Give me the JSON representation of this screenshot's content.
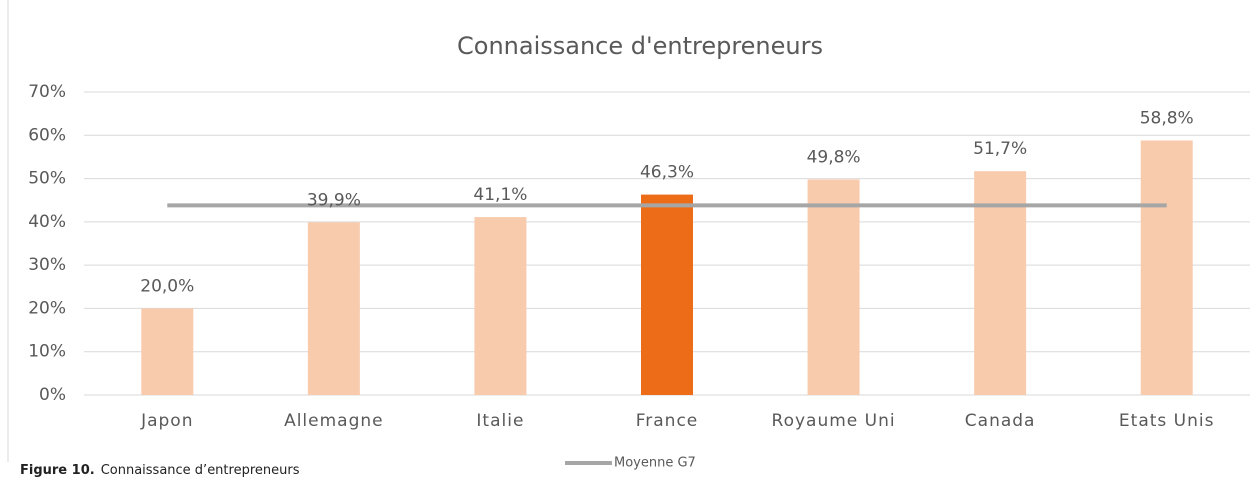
{
  "chart_data": {
    "type": "bar",
    "title": "Connaissance d'entrepreneurs",
    "categories": [
      "Japon",
      "Allemagne",
      "Italie",
      "France",
      "Royaume Uni",
      "Canada",
      "Etats Unis"
    ],
    "values": [
      20.0,
      39.9,
      41.1,
      46.3,
      49.8,
      51.7,
      58.8
    ],
    "value_labels": [
      "20,0%",
      "39,9%",
      "41,1%",
      "46,3%",
      "49,8%",
      "51,7%",
      "58,8%"
    ],
    "colors": [
      "#f8cbad",
      "#f8cbad",
      "#f8cbad",
      "#ec6c17",
      "#f8cbad",
      "#f8cbad",
      "#f8cbad"
    ],
    "lines": [
      {
        "name": "Moyenne G7",
        "color": "#a6a6a6",
        "values": [
          43.8,
          43.8,
          43.8,
          43.8,
          43.8,
          43.8,
          43.8
        ]
      }
    ],
    "ylim": [
      0,
      70
    ],
    "yticks": [
      {
        "value": 0,
        "label": "0%"
      },
      {
        "value": 10,
        "label": "10%"
      },
      {
        "value": 20,
        "label": "20%"
      },
      {
        "value": 30,
        "label": "30%"
      },
      {
        "value": 40,
        "label": "40%"
      },
      {
        "value": 50,
        "label": "50%"
      },
      {
        "value": 60,
        "label": "60%"
      },
      {
        "value": 70,
        "label": "70%"
      }
    ],
    "grid": true,
    "legend": "bottom"
  },
  "caption": {
    "label": "Figure 10.",
    "text": "Connaissance d’entrepreneurs"
  }
}
